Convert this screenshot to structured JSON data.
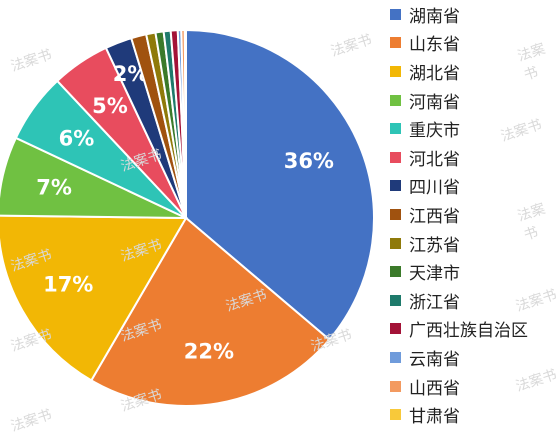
{
  "watermark_text": "法案书",
  "chart_data": {
    "type": "pie",
    "title": "",
    "legend_position": "right",
    "categories": [
      "湖南省",
      "山东省",
      "湖北省",
      "河南省",
      "重庆市",
      "河北省",
      "四川省",
      "江西省",
      "江苏省",
      "天津市",
      "浙江省",
      "广西壮族自治区",
      "云南省",
      "山西省",
      "甘肃省"
    ],
    "values": [
      36.2,
      22.2,
      16.8,
      6.8,
      6.0,
      5.0,
      2.3,
      1.3,
      0.8,
      0.7,
      0.6,
      0.6,
      0.3,
      0.3,
      0.1
    ],
    "data_labels": [
      "36%",
      "22%",
      "17%",
      "7%",
      "6%",
      "5%",
      "2%",
      "",
      "",
      "",
      "",
      "",
      "",
      "",
      ""
    ],
    "colors": [
      "#4472C4",
      "#ED7D31",
      "#F2B705",
      "#70C142",
      "#2EC4B6",
      "#E84C5E",
      "#1F3A7A",
      "#A0520F",
      "#8F7A0A",
      "#3B7A2A",
      "#1E7A6B",
      "#A31237",
      "#6F9BDB",
      "#F39A60",
      "#F8C93A"
    ],
    "label_color": "#ffffff"
  }
}
